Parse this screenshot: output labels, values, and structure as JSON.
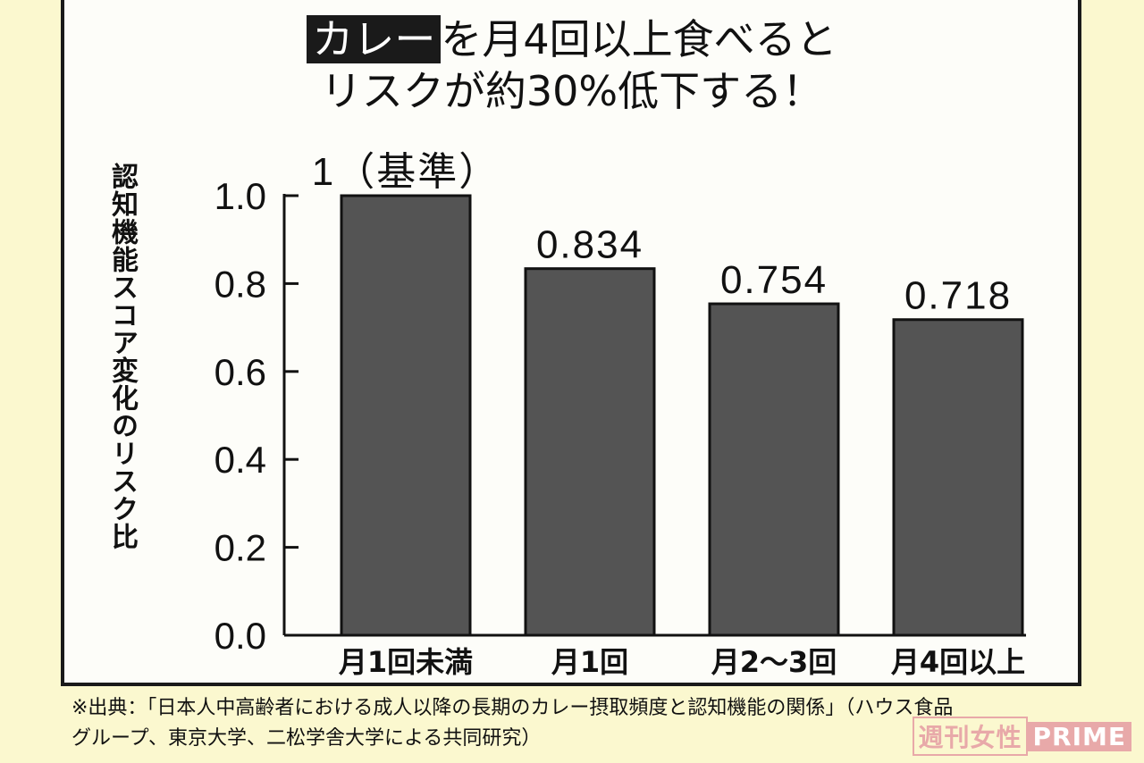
{
  "title": {
    "highlight": "カレー",
    "line1_rest": "を月4回以上食べると",
    "line2": "リスクが約30%低下する！"
  },
  "source": {
    "line1": "※出典：「日本人中高齢者における成人以降の長期のカレー摂取頻度と認知機能の関係」（ハウス食品",
    "line2": "グループ、東京大学、二松学舎大学による共同研究）"
  },
  "watermark": {
    "part1": "週刊女性",
    "part2": "PRIME"
  },
  "colors": {
    "bar": "#545454",
    "text": "#111111",
    "background": "#fbf8cf",
    "panel": "#fdfdf9"
  },
  "chart_data": {
    "type": "bar",
    "ylabel": "認知機能スコア変化のリスク比",
    "categories": [
      "月1回未満",
      "月1回",
      "月2〜3回",
      "月4回以上"
    ],
    "values": [
      1,
      0.834,
      0.754,
      0.718
    ],
    "data_labels": [
      "1（基準）",
      "0.834",
      "0.754",
      "0.718"
    ],
    "yticks": [
      "0.0",
      "0.2",
      "0.4",
      "0.6",
      "0.8",
      "1.0"
    ],
    "ylim": [
      0,
      1.0
    ],
    "grid": false,
    "legend": "none"
  }
}
